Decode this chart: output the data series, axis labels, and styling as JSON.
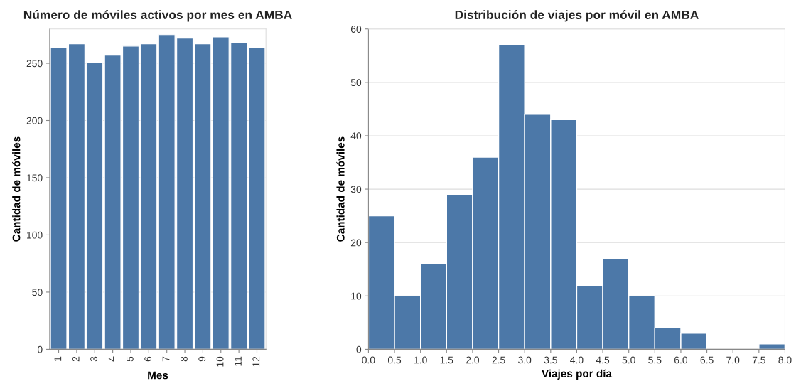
{
  "chart_data": [
    {
      "type": "bar",
      "title": "Número de móviles activos por mes en AMBA",
      "xlabel": "Mes",
      "ylabel": "Cantidad de móviles",
      "categories": [
        "1",
        "2",
        "3",
        "4",
        "5",
        "6",
        "7",
        "8",
        "9",
        "10",
        "11",
        "12"
      ],
      "values": [
        264,
        267,
        251,
        257,
        265,
        267,
        275,
        272,
        267,
        273,
        268,
        264
      ],
      "color": "#4c78a8",
      "ylim": [
        0,
        280
      ],
      "yticks": [
        0,
        50,
        100,
        150,
        200,
        250
      ],
      "grid": "y"
    },
    {
      "type": "histogram",
      "title": "Distribución de viajes por móvil en AMBA",
      "xlabel": "Viajes por día",
      "ylabel": "Cantidad de móviles",
      "bins": [
        0,
        0.5,
        1,
        1.5,
        2,
        2.5,
        3,
        3.5,
        4,
        4.5,
        5,
        5.5,
        6,
        6.5,
        7,
        7.5,
        8
      ],
      "values": [
        25,
        10,
        16,
        29,
        36,
        57,
        44,
        43,
        12,
        17,
        10,
        4,
        3,
        0,
        0,
        1
      ],
      "color": "#4c78a8",
      "xlim": [
        0,
        8
      ],
      "xticks": [
        {
          "value": 0,
          "label": "0.0"
        },
        {
          "value": 0.5,
          "label": "0.5"
        },
        {
          "value": 1,
          "label": "1.0"
        },
        {
          "value": 1.5,
          "label": "1.5"
        },
        {
          "value": 2,
          "label": "2.0"
        },
        {
          "value": 2.5,
          "label": "2.5"
        },
        {
          "value": 3,
          "label": "3.0"
        },
        {
          "value": 3.5,
          "label": "3.5"
        },
        {
          "value": 4,
          "label": "4.0"
        },
        {
          "value": 4.5,
          "label": "4.5"
        },
        {
          "value": 5,
          "label": "5.0"
        },
        {
          "value": 5.5,
          "label": "5.5"
        },
        {
          "value": 6,
          "label": "6.0"
        },
        {
          "value": 6.5,
          "label": "6.5"
        },
        {
          "value": 7,
          "label": "7.0"
        },
        {
          "value": 7.5,
          "label": "7.5"
        },
        {
          "value": 8,
          "label": "8.0"
        }
      ],
      "ylim": [
        0,
        60
      ],
      "yticks": [
        0,
        10,
        20,
        30,
        40,
        50,
        60
      ],
      "grid": "y"
    }
  ]
}
